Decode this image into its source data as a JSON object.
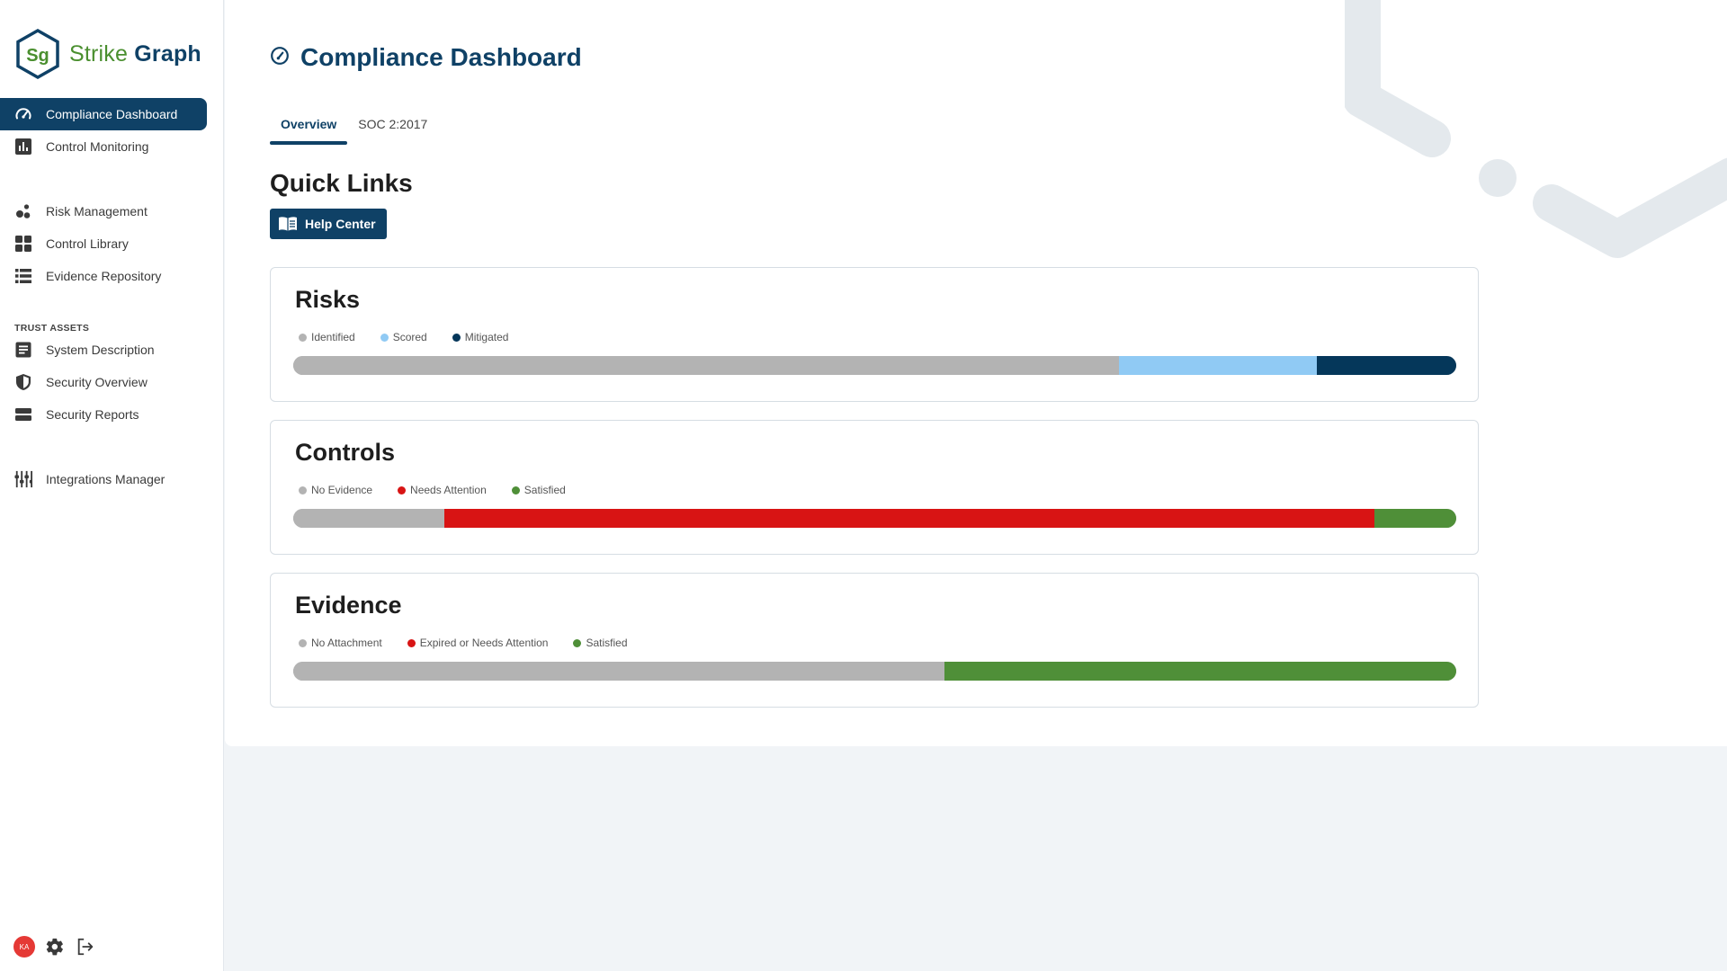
{
  "app": {
    "logo_mark": "Sg",
    "logo_word1": "Strike",
    "logo_word2": "Graph"
  },
  "sidebar": {
    "items": [
      {
        "label": "Compliance Dashboard",
        "icon": "gauge-icon",
        "active": true
      },
      {
        "label": "Control Monitoring",
        "icon": "bar-chart-icon"
      },
      {
        "label": "Risk Management",
        "icon": "bubbles-icon"
      },
      {
        "label": "Control Library",
        "icon": "grid-icon"
      },
      {
        "label": "Evidence Repository",
        "icon": "list-icon"
      },
      {
        "label": "System Description",
        "icon": "document-icon"
      },
      {
        "label": "Security Overview",
        "icon": "shield-icon"
      },
      {
        "label": "Security Reports",
        "icon": "storage-icon"
      },
      {
        "label": "Integrations Manager",
        "icon": "sliders-icon"
      }
    ],
    "section_label": "TRUST ASSETS",
    "footer": {
      "avatar_initials": "KA",
      "icons": [
        "gear-icon",
        "logout-icon"
      ]
    }
  },
  "main": {
    "title": "Compliance Dashboard",
    "tabs": [
      {
        "label": "Overview",
        "active": true
      },
      {
        "label": "SOC 2:2017",
        "active": false
      }
    ],
    "quick_links": {
      "title": "Quick Links",
      "help_center_label": "Help Center"
    },
    "cards": [
      {
        "title": "Risks",
        "legend": [
          {
            "label": "Identified",
            "color": "#b3b3b3"
          },
          {
            "label": "Scored",
            "color": "#90caf4"
          },
          {
            "label": "Mitigated",
            "color": "#05375a"
          }
        ],
        "segments_percent": [
          71,
          17,
          12
        ]
      },
      {
        "title": "Controls",
        "legend": [
          {
            "label": "No Evidence",
            "color": "#b3b3b3"
          },
          {
            "label": "Needs Attention",
            "color": "#d81414"
          },
          {
            "label": "Satisfied",
            "color": "#4f8f38"
          }
        ],
        "segments_percent": [
          13,
          80,
          7
        ]
      },
      {
        "title": "Evidence",
        "legend": [
          {
            "label": "No Attachment",
            "color": "#b3b3b3"
          },
          {
            "label": "Expired or Needs Attention",
            "color": "#d81414"
          },
          {
            "label": "Satisfied",
            "color": "#4f8f38"
          }
        ],
        "segments_percent": [
          56,
          0,
          44
        ]
      }
    ]
  }
}
